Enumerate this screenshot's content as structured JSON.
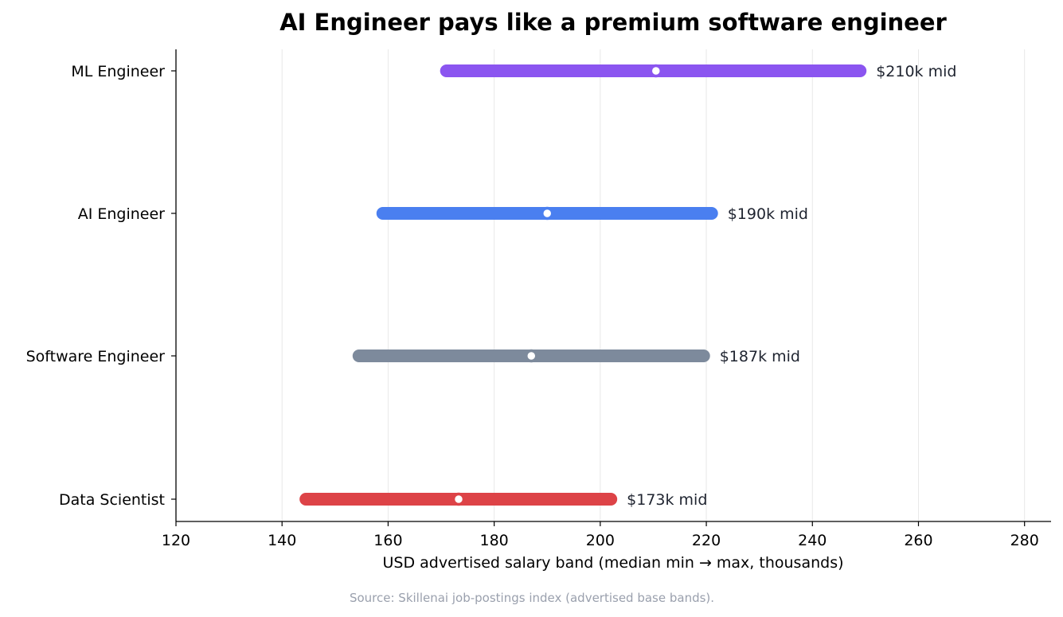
{
  "chart_data": {
    "type": "range-bar",
    "title": "AI Engineer pays like a premium software engineer",
    "xlabel": "USD advertised salary band (median min → max, thousands)",
    "ylabel": "",
    "xlim": [
      120,
      285
    ],
    "xticks": [
      120,
      140,
      160,
      180,
      200,
      220,
      240,
      260,
      280
    ],
    "grid": "vertical",
    "categories": [
      "ML Engineer",
      "AI Engineer",
      "Software Engineer",
      "Data Scientist"
    ],
    "series": [
      {
        "category": "ML Engineer",
        "min": 171,
        "max": 249,
        "mid": 210.5,
        "mid_label": "$210k mid",
        "color": "#8b55f0"
      },
      {
        "category": "AI Engineer",
        "min": 159,
        "max": 221,
        "mid": 190,
        "mid_label": "$190k mid",
        "color": "#4a7ff0"
      },
      {
        "category": "Software Engineer",
        "min": 154.5,
        "max": 219.5,
        "mid": 187,
        "mid_label": "$187k mid",
        "color": "#7d8a9c"
      },
      {
        "category": "Data Scientist",
        "min": 144.5,
        "max": 202,
        "mid": 173.3,
        "mid_label": "$173k mid",
        "color": "#dd4347"
      }
    ],
    "source": "Source: Skillenai job-postings index (advertised base bands)."
  }
}
